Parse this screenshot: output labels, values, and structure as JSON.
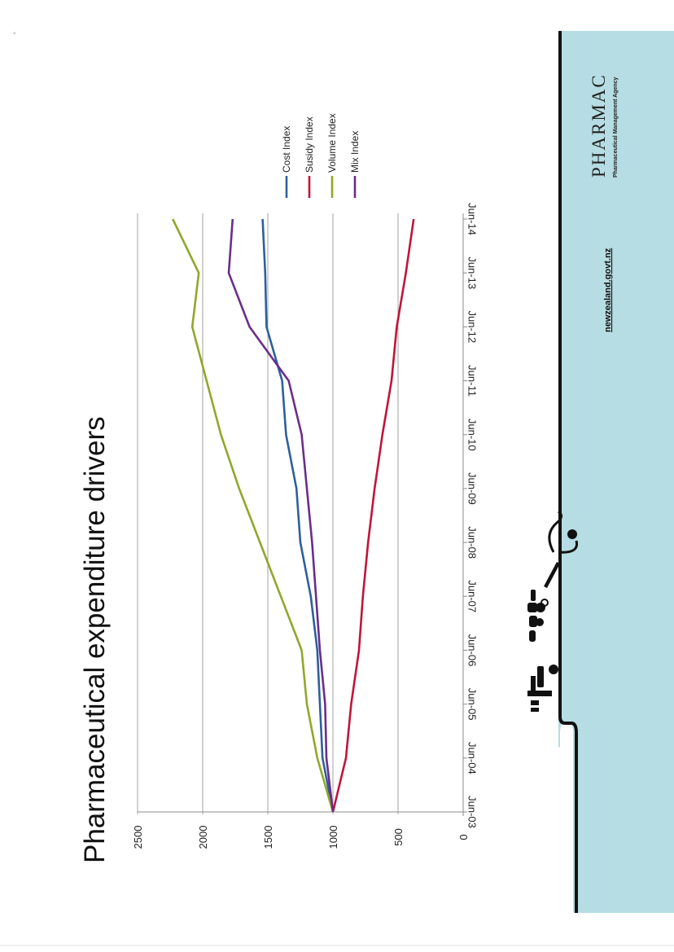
{
  "page": {
    "title": "Pharmaceutical expenditure drivers"
  },
  "branding": {
    "logo_name": "PHARMAC",
    "logo_subtitle": "Pharmaceutical Management Agency",
    "website": "newzealand.govt.nz",
    "panel_color": "#b6dde3"
  },
  "chart_data": {
    "type": "line",
    "title": "Pharmaceutical expenditure drivers",
    "xlabel": "",
    "ylabel": "",
    "ylim": [
      0,
      2500
    ],
    "yticks": [
      "0",
      "500",
      "1000",
      "1500",
      "2000",
      "2500"
    ],
    "grid": true,
    "legend_position": "right",
    "categories": [
      "Jun-03",
      "Jun-04",
      "Jun-05",
      "Jun-06",
      "Jun-07",
      "Jun-08",
      "Jun-09",
      "Jun-10",
      "Jun-11",
      "Jun-12",
      "Jun-13",
      "Jun-14"
    ],
    "series": [
      {
        "name": "Cost Index",
        "color": "#2e5f9e",
        "values": [
          1000,
          1080,
          1100,
          1120,
          1170,
          1250,
          1280,
          1360,
          1390,
          1510,
          1520,
          1540
        ]
      },
      {
        "name": "Susidy Index",
        "color": "#c0143c",
        "values": [
          1000,
          900,
          860,
          800,
          770,
          730,
          680,
          620,
          550,
          510,
          440,
          380
        ]
      },
      {
        "name": "Volume Index",
        "color": "#8fa82b",
        "values": [
          1000,
          1120,
          1200,
          1240,
          1400,
          1560,
          1720,
          1860,
          1970,
          2080,
          2030,
          2230
        ]
      },
      {
        "name": "Mix Index",
        "color": "#6a2d8c",
        "values": [
          1000,
          1050,
          1060,
          1100,
          1130,
          1160,
          1200,
          1240,
          1340,
          1640,
          1800,
          1770
        ]
      }
    ]
  }
}
